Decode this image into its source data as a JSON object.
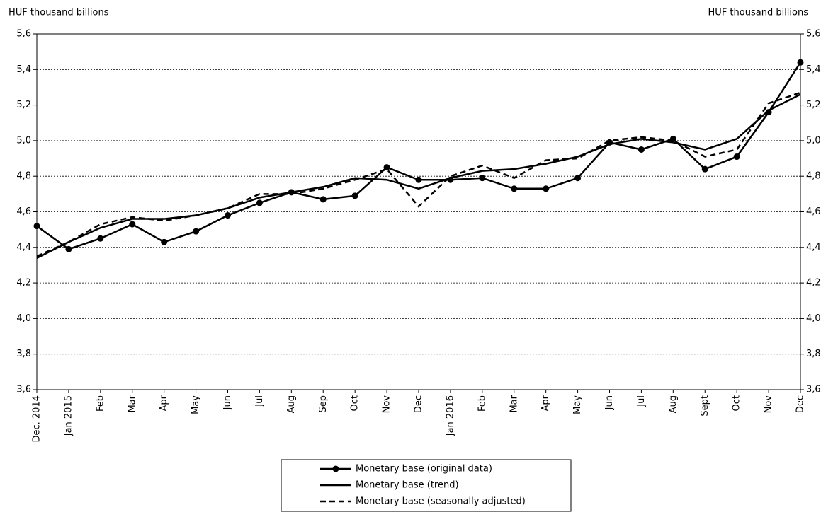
{
  "chart_data": {
    "type": "line",
    "y_label": "HUF thousand billions",
    "y2_label": "HUF thousand billions",
    "categories": [
      "Dec. 2014",
      "Jan 2015",
      "Feb",
      "Mar",
      "Apr",
      "May",
      "Jun",
      "Jul",
      "Aug",
      "Sep",
      "Oct",
      "Nov",
      "Dec",
      "Jan 2016",
      "Feb",
      "Mar",
      "Apr",
      "May",
      "Jun",
      "Jul",
      "Aug",
      "Sept",
      "Oct",
      "Nov",
      "Dec"
    ],
    "series": [
      {
        "name": "Monetary base (original data)",
        "color": "#000000",
        "marker": "circle",
        "dash": false,
        "values": [
          4.52,
          4.39,
          4.45,
          4.53,
          4.43,
          4.49,
          4.58,
          4.65,
          4.71,
          4.67,
          4.69,
          4.85,
          4.78,
          4.78,
          4.79,
          4.73,
          4.73,
          4.79,
          4.99,
          4.95,
          5.01,
          4.84,
          4.91,
          5.16,
          5.44
        ]
      },
      {
        "name": "Monetary base (trend)",
        "color": "#000000",
        "marker": "none",
        "dash": false,
        "values": [
          4.34,
          4.43,
          4.51,
          4.56,
          4.56,
          4.58,
          4.62,
          4.68,
          4.71,
          4.74,
          4.79,
          4.78,
          4.73,
          4.79,
          4.83,
          4.84,
          4.87,
          4.91,
          4.98,
          5.01,
          4.99,
          4.95,
          5.01,
          5.17,
          5.26
        ]
      },
      {
        "name": "Monetary base (seasonally adjusted)",
        "color": "#000000",
        "marker": "none",
        "dash": true,
        "values": [
          4.35,
          4.43,
          4.53,
          4.57,
          4.55,
          4.58,
          4.62,
          4.7,
          4.7,
          4.73,
          4.78,
          4.84,
          4.63,
          4.8,
          4.86,
          4.79,
          4.89,
          4.9,
          5.0,
          5.02,
          5.0,
          4.91,
          4.95,
          5.21,
          5.27
        ]
      }
    ],
    "ylim": [
      3.6,
      5.6
    ],
    "yticks": [
      {
        "value": 3.6,
        "label": "3,6"
      },
      {
        "value": 3.8,
        "label": "3,8"
      },
      {
        "value": 4.0,
        "label": "4,0"
      },
      {
        "value": 4.2,
        "label": "4,2"
      },
      {
        "value": 4.4,
        "label": "4,4"
      },
      {
        "value": 4.6,
        "label": "4,6"
      },
      {
        "value": 4.8,
        "label": "4,8"
      },
      {
        "value": 5.0,
        "label": "5,0"
      },
      {
        "value": 5.2,
        "label": "5,2"
      },
      {
        "value": 5.4,
        "label": "5,4"
      },
      {
        "value": 5.6,
        "label": "5,6"
      }
    ],
    "y2lim": [
      3.6,
      5.6
    ],
    "y2ticks": [
      {
        "value": 3.6,
        "label": "3,6"
      },
      {
        "value": 3.8,
        "label": "3,8"
      },
      {
        "value": 4.0,
        "label": "4,0"
      },
      {
        "value": 4.2,
        "label": "4,2"
      },
      {
        "value": 4.4,
        "label": "4,4"
      },
      {
        "value": 4.6,
        "label": "4,6"
      },
      {
        "value": 4.8,
        "label": "4,8"
      },
      {
        "value": 5.0,
        "label": "5,0"
      },
      {
        "value": 5.2,
        "label": "5,2"
      },
      {
        "value": 5.4,
        "label": "5,4"
      },
      {
        "value": 5.6,
        "label": "5,6"
      }
    ],
    "grid": true,
    "legend": "bottom"
  }
}
